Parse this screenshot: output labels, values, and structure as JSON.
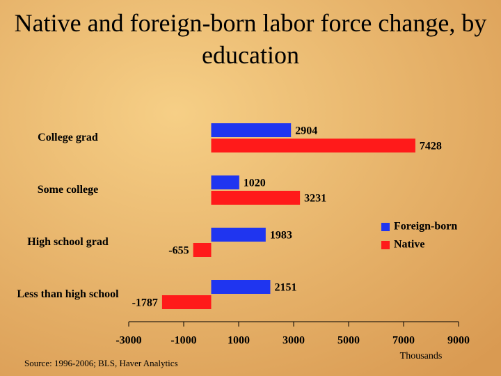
{
  "chart_data": {
    "type": "hbar",
    "title": "Native and foreign-born labor force change, by education",
    "categories": [
      "College grad",
      "Some college",
      "High school grad",
      "Less than high school"
    ],
    "series": [
      {
        "name": "Foreign-born",
        "color": "#1f35f0",
        "values": [
          2904,
          1020,
          1983,
          2151
        ]
      },
      {
        "name": "Native",
        "color": "#ff1a1a",
        "values": [
          7428,
          3231,
          -655,
          -1787
        ]
      }
    ],
    "xlim": [
      -3000,
      9000
    ],
    "xticks": [
      -3000,
      -1000,
      1000,
      3000,
      5000,
      7000,
      9000
    ],
    "xlabel": "Thousands",
    "source": "Source: 1996-2006; BLS, Haver Analytics",
    "legend": "right"
  }
}
